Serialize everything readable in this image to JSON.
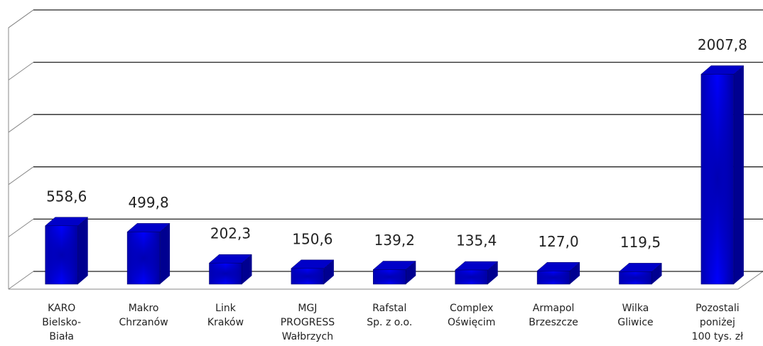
{
  "chart_data": {
    "type": "bar3d",
    "categories": [
      [
        "KARO",
        "Bielsko-",
        "Biała"
      ],
      [
        "Makro",
        "Chrzanów"
      ],
      [
        "Link",
        "Kraków"
      ],
      [
        "MGJ",
        "PROGRESS",
        "Wałbrzych"
      ],
      [
        "Rafstal",
        "Sp. z o.o."
      ],
      [
        "Complex",
        "Oświęcim"
      ],
      [
        "Armapol",
        "Brzeszcze"
      ],
      [
        "Wilka",
        "Gliwice"
      ],
      [
        "Pozostali",
        "poniżej",
        "100 tys. zł"
      ]
    ],
    "values": [
      558.6,
      499.8,
      202.3,
      150.6,
      139.2,
      135.4,
      127.0,
      119.5,
      2007.8
    ],
    "value_labels": [
      "558,6",
      "499,8",
      "202,3",
      "150,6",
      "139,2",
      "135,4",
      "127,0",
      "119,5",
      "2007,8"
    ],
    "color": "#0a0ae6",
    "ylim": [
      0,
      2500
    ],
    "yticks": [
      0,
      500,
      1000,
      1500,
      2000,
      2500
    ],
    "grid": true
  }
}
